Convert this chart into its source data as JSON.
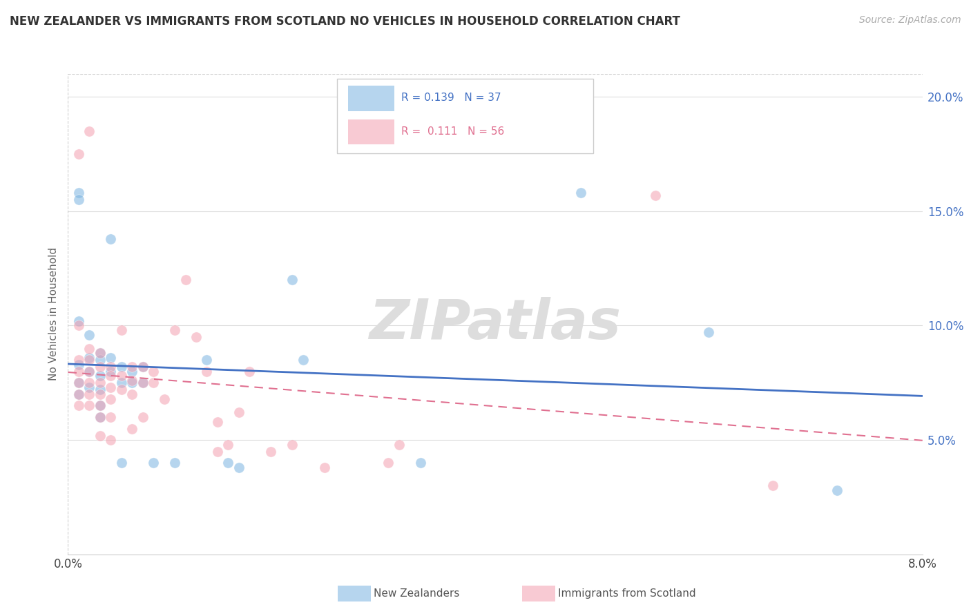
{
  "title": "NEW ZEALANDER VS IMMIGRANTS FROM SCOTLAND NO VEHICLES IN HOUSEHOLD CORRELATION CHART",
  "source": "Source: ZipAtlas.com",
  "ylabel": "No Vehicles in Household",
  "xlim": [
    0.0,
    0.08
  ],
  "ylim": [
    0.0,
    0.21
  ],
  "nz_R": 0.139,
  "nz_N": 37,
  "sc_R": 0.111,
  "sc_N": 56,
  "nz_color": "#7ab4e0",
  "sc_color": "#f4a0b0",
  "legend_nz": "New Zealanders",
  "legend_sc": "Immigrants from Scotland",
  "nz_points": [
    [
      0.001,
      0.158
    ],
    [
      0.001,
      0.155
    ],
    [
      0.001,
      0.102
    ],
    [
      0.001,
      0.083
    ],
    [
      0.001,
      0.075
    ],
    [
      0.001,
      0.07
    ],
    [
      0.002,
      0.096
    ],
    [
      0.002,
      0.086
    ],
    [
      0.002,
      0.08
    ],
    [
      0.002,
      0.073
    ],
    [
      0.003,
      0.088
    ],
    [
      0.003,
      0.085
    ],
    [
      0.003,
      0.078
    ],
    [
      0.003,
      0.072
    ],
    [
      0.003,
      0.065
    ],
    [
      0.003,
      0.06
    ],
    [
      0.004,
      0.138
    ],
    [
      0.004,
      0.086
    ],
    [
      0.004,
      0.08
    ],
    [
      0.005,
      0.04
    ],
    [
      0.005,
      0.082
    ],
    [
      0.005,
      0.075
    ],
    [
      0.006,
      0.08
    ],
    [
      0.006,
      0.075
    ],
    [
      0.007,
      0.082
    ],
    [
      0.007,
      0.075
    ],
    [
      0.008,
      0.04
    ],
    [
      0.01,
      0.04
    ],
    [
      0.013,
      0.085
    ],
    [
      0.015,
      0.04
    ],
    [
      0.016,
      0.038
    ],
    [
      0.021,
      0.12
    ],
    [
      0.022,
      0.085
    ],
    [
      0.033,
      0.04
    ],
    [
      0.048,
      0.158
    ],
    [
      0.06,
      0.097
    ],
    [
      0.072,
      0.028
    ]
  ],
  "sc_points": [
    [
      0.001,
      0.175
    ],
    [
      0.001,
      0.1
    ],
    [
      0.001,
      0.085
    ],
    [
      0.001,
      0.08
    ],
    [
      0.001,
      0.075
    ],
    [
      0.001,
      0.07
    ],
    [
      0.001,
      0.065
    ],
    [
      0.002,
      0.185
    ],
    [
      0.002,
      0.09
    ],
    [
      0.002,
      0.085
    ],
    [
      0.002,
      0.08
    ],
    [
      0.002,
      0.075
    ],
    [
      0.002,
      0.07
    ],
    [
      0.002,
      0.065
    ],
    [
      0.003,
      0.088
    ],
    [
      0.003,
      0.082
    ],
    [
      0.003,
      0.075
    ],
    [
      0.003,
      0.07
    ],
    [
      0.003,
      0.065
    ],
    [
      0.003,
      0.06
    ],
    [
      0.003,
      0.052
    ],
    [
      0.004,
      0.082
    ],
    [
      0.004,
      0.078
    ],
    [
      0.004,
      0.073
    ],
    [
      0.004,
      0.068
    ],
    [
      0.004,
      0.06
    ],
    [
      0.004,
      0.05
    ],
    [
      0.005,
      0.098
    ],
    [
      0.005,
      0.078
    ],
    [
      0.005,
      0.072
    ],
    [
      0.006,
      0.082
    ],
    [
      0.006,
      0.076
    ],
    [
      0.006,
      0.07
    ],
    [
      0.006,
      0.055
    ],
    [
      0.007,
      0.082
    ],
    [
      0.007,
      0.075
    ],
    [
      0.007,
      0.06
    ],
    [
      0.008,
      0.08
    ],
    [
      0.008,
      0.075
    ],
    [
      0.009,
      0.068
    ],
    [
      0.01,
      0.098
    ],
    [
      0.011,
      0.12
    ],
    [
      0.012,
      0.095
    ],
    [
      0.013,
      0.08
    ],
    [
      0.014,
      0.058
    ],
    [
      0.014,
      0.045
    ],
    [
      0.015,
      0.048
    ],
    [
      0.016,
      0.062
    ],
    [
      0.017,
      0.08
    ],
    [
      0.019,
      0.045
    ],
    [
      0.021,
      0.048
    ],
    [
      0.024,
      0.038
    ],
    [
      0.03,
      0.04
    ],
    [
      0.031,
      0.048
    ],
    [
      0.055,
      0.157
    ],
    [
      0.066,
      0.03
    ]
  ]
}
